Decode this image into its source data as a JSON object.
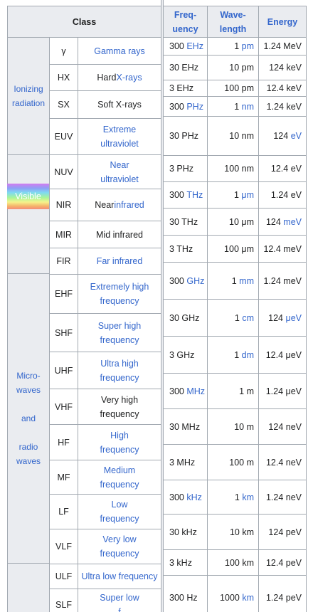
{
  "header": {
    "class": "Class",
    "frequency": "Freq-\nuency",
    "wavelength": "Wave-\nlength",
    "energy": "Energy"
  },
  "groups": {
    "ionizing": "Ionizing\nradiation",
    "visible": "Visible",
    "micro_radio": "Micro-\nwaves\n\nand\n\nradio\nwaves"
  },
  "rows": [
    {
      "abbr": "γ",
      "name": "Gamma rays",
      "name_link": true
    },
    {
      "abbr": "HX",
      "name": "Hard X-rays",
      "name_link": "partial"
    },
    {
      "abbr": "SX",
      "name": "Soft X-rays",
      "name_link": false
    },
    {
      "abbr": "EUV",
      "name": "Extreme\nultraviolet",
      "name_link": true
    },
    {
      "abbr": "NUV",
      "name": "Near\nultraviolet",
      "name_link": true
    },
    {
      "abbr": "NIR",
      "name": "Near infrared",
      "name_link": "partial"
    },
    {
      "abbr": "MIR",
      "name": "Mid infrared",
      "name_link": false
    },
    {
      "abbr": "FIR",
      "name": "Far infrared",
      "name_link": true
    },
    {
      "abbr": "EHF",
      "name": "Extremely high\nfrequency",
      "name_link": true
    },
    {
      "abbr": "SHF",
      "name": "Super high\nfrequency",
      "name_link": true
    },
    {
      "abbr": "UHF",
      "name": "Ultra high\nfrequency",
      "name_link": true
    },
    {
      "abbr": "VHF",
      "name": "Very high\nfrequency",
      "name_link": false
    },
    {
      "abbr": "HF",
      "name": "High\nfrequency",
      "name_link": true
    },
    {
      "abbr": "MF",
      "name": "Medium\nfrequency",
      "name_link": true
    },
    {
      "abbr": "LF",
      "name": "Low\nfrequency",
      "name_link": true
    },
    {
      "abbr": "VLF",
      "name": "Very low\nfrequency",
      "name_link": true
    },
    {
      "abbr": "ULF",
      "name": "Ultra low frequency",
      "name_link": true
    },
    {
      "abbr": "SLF",
      "name": "Super low\nf",
      "name_link": true
    }
  ],
  "measures": [
    {
      "freq": "300 ",
      "freq_unit": "EHz",
      "wave": "1 ",
      "wave_unit": "pm",
      "energy": "1.24 MeV"
    },
    {
      "freq": "30 EHz",
      "wave": "10 pm",
      "energy": "124 keV"
    },
    {
      "freq": "3 EHz",
      "wave": "100 pm",
      "energy": "12.4 keV"
    },
    {
      "freq": "300 ",
      "freq_unit": "PHz",
      "wave": "1 ",
      "wave_unit": "nm",
      "energy": "1.24 keV"
    },
    {
      "freq": "30 PHz",
      "wave": "10 nm",
      "energy": "124 ",
      "energy_unit": "eV"
    },
    {
      "freq": "3 PHz",
      "wave": "100 nm",
      "energy": "12.4 eV"
    },
    {
      "freq": "300 ",
      "freq_unit": "THz",
      "wave": "1 ",
      "wave_unit": "μm",
      "energy": "1.24 eV"
    },
    {
      "freq": "30 THz",
      "wave": "10 μm",
      "energy": "124 ",
      "energy_unit": "meV"
    },
    {
      "freq": "3 THz",
      "wave": "100 μm",
      "energy": "12.4 meV"
    },
    {
      "freq": "300 ",
      "freq_unit": "GHz",
      "wave": "1 ",
      "wave_unit": "mm",
      "energy": "1.24 meV"
    },
    {
      "freq": "30 GHz",
      "wave": "1 ",
      "wave_unit": "cm",
      "energy": "124 ",
      "energy_unit": "μeV"
    },
    {
      "freq": "3 GHz",
      "wave": "1 ",
      "wave_unit": "dm",
      "energy": "12.4 μeV"
    },
    {
      "freq": "300 ",
      "freq_unit": "MHz",
      "wave": "1 m",
      "energy": "1.24 μeV"
    },
    {
      "freq": "30 MHz",
      "wave": "10 m",
      "energy": "124 neV"
    },
    {
      "freq": "3 MHz",
      "wave": "100 m",
      "energy": "12.4 neV"
    },
    {
      "freq": "300 ",
      "freq_unit": "kHz",
      "wave": "1 ",
      "wave_unit": "km",
      "energy": "1.24 neV"
    },
    {
      "freq": "30 kHz",
      "wave": "10 km",
      "energy": "124 peV"
    },
    {
      "freq": "3 kHz",
      "wave": "100 km",
      "energy": "12.4 peV"
    },
    {
      "freq": "300 Hz",
      "wave": "1000 ",
      "wave_unit": "km",
      "energy": "1.24 peV"
    }
  ]
}
